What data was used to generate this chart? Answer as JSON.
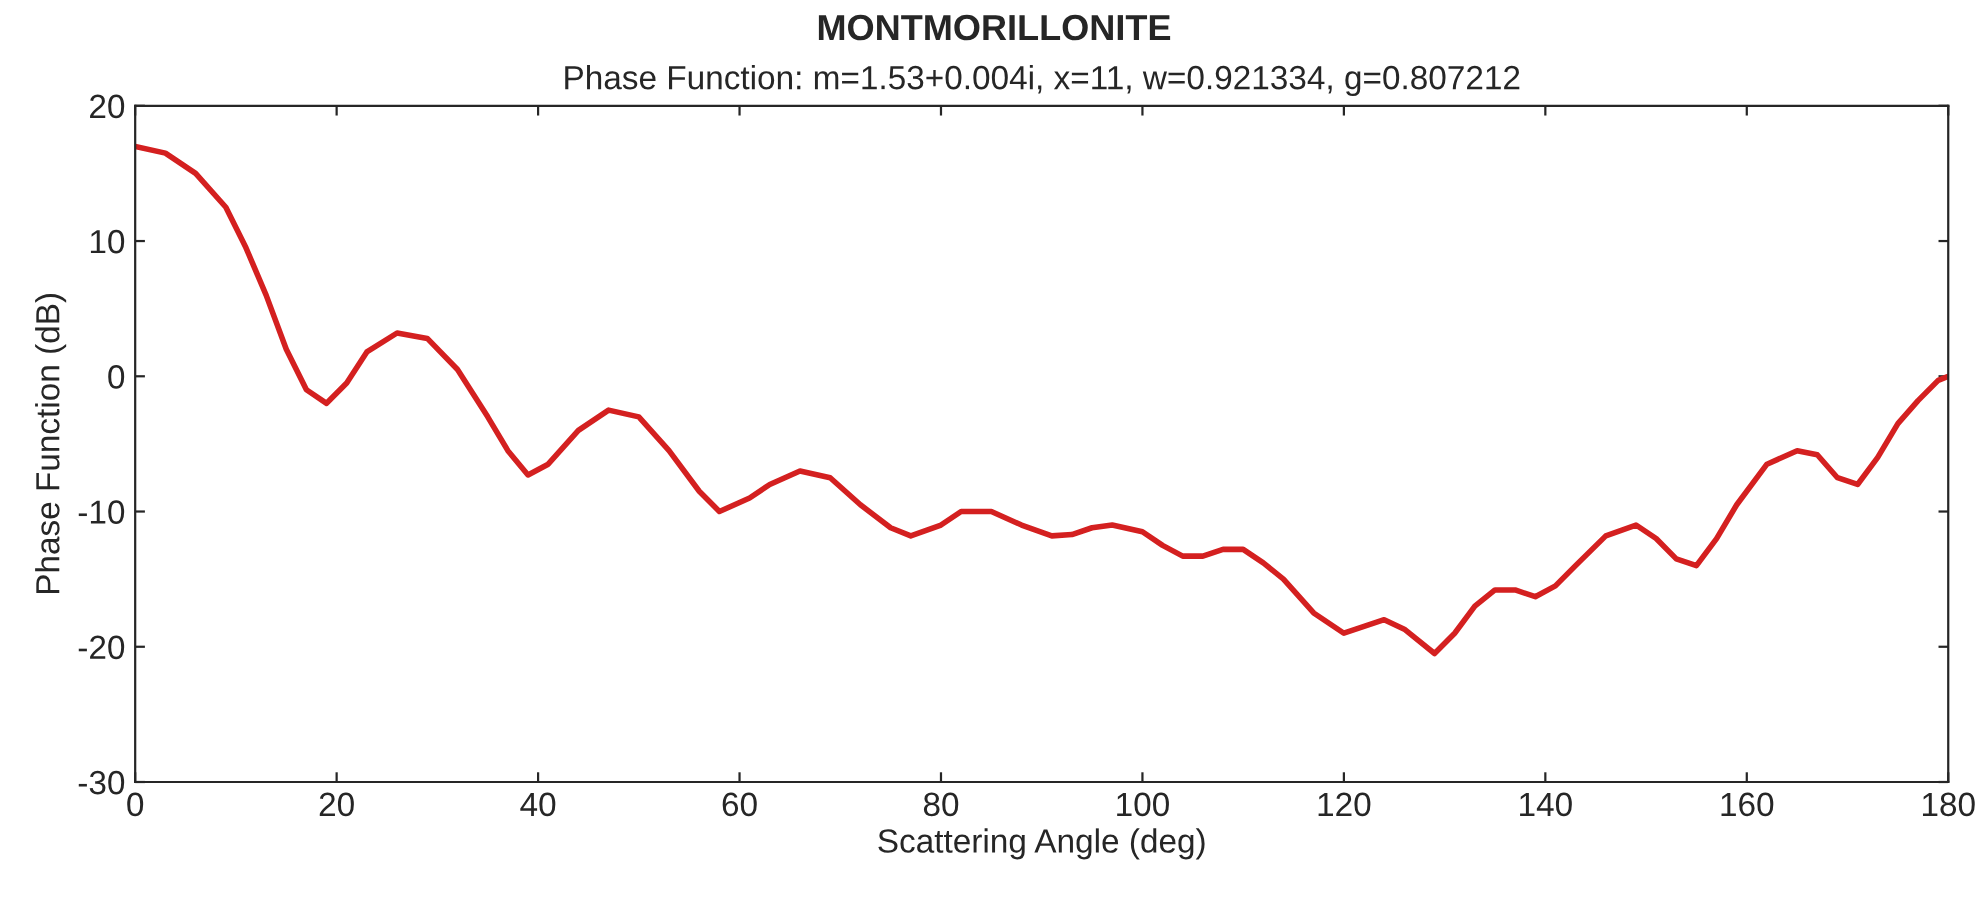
{
  "chart_data": {
    "type": "line",
    "title": "MONTMORILLONITE",
    "subtitle": "Phase Function: m=1.53+0.004i, x=11, w=0.921334, g=0.807212",
    "xlabel": "Scattering Angle (deg)",
    "ylabel": "Phase Function (dB)",
    "series": [
      {
        "color": "#d42020",
        "x": [
          0,
          3,
          6,
          9,
          11,
          13,
          15,
          17,
          19,
          21,
          23,
          26,
          29,
          32,
          35,
          37,
          39,
          41,
          44,
          47,
          50,
          53,
          56,
          58,
          61,
          63,
          66,
          69,
          72,
          75,
          77,
          80,
          82,
          85,
          88,
          91,
          93,
          95,
          97,
          100,
          102,
          104,
          106,
          108,
          110,
          112,
          114,
          117,
          120,
          122,
          124,
          126,
          129,
          131,
          133,
          135,
          137,
          139,
          141,
          143,
          146,
          149,
          151,
          153,
          155,
          157,
          159,
          162,
          165,
          167,
          169,
          171,
          173,
          175,
          177,
          179,
          180
        ],
        "values": [
          17,
          16.5,
          15,
          12.5,
          9.5,
          6,
          2,
          -1,
          -2,
          -0.5,
          1.8,
          3.2,
          2.8,
          0.5,
          -3,
          -5.5,
          -7.3,
          -6.5,
          -4,
          -2.5,
          -3,
          -5.5,
          -8.5,
          -10,
          -9,
          -8,
          -7,
          -7.5,
          -9.5,
          -11.2,
          -11.8,
          -11,
          -10,
          -10,
          -11,
          -11.8,
          -11.7,
          -11.2,
          -11,
          -11.5,
          -12.5,
          -13.3,
          -13.3,
          -12.8,
          -12.8,
          -13.8,
          -15,
          -17.5,
          -19,
          -18.5,
          -18,
          -18.7,
          -20.5,
          -19,
          -17,
          -15.8,
          -15.8,
          -16.3,
          -15.5,
          -14,
          -11.8,
          -11,
          -12,
          -13.5,
          -14,
          -12,
          -9.5,
          -6.5,
          -5.5,
          -5.8,
          -7.5,
          -8,
          -6,
          -3.5,
          -1.8,
          -0.3,
          0
        ]
      }
    ],
    "xlim": [
      0,
      180
    ],
    "ylim": [
      -30,
      20
    ],
    "xticks": [
      0,
      20,
      40,
      60,
      80,
      100,
      120,
      140,
      160,
      180
    ],
    "yticks": [
      -30,
      -20,
      -10,
      0,
      10,
      20
    ],
    "grid": false,
    "legend": false,
    "marker": "none",
    "line_style": "solid"
  }
}
